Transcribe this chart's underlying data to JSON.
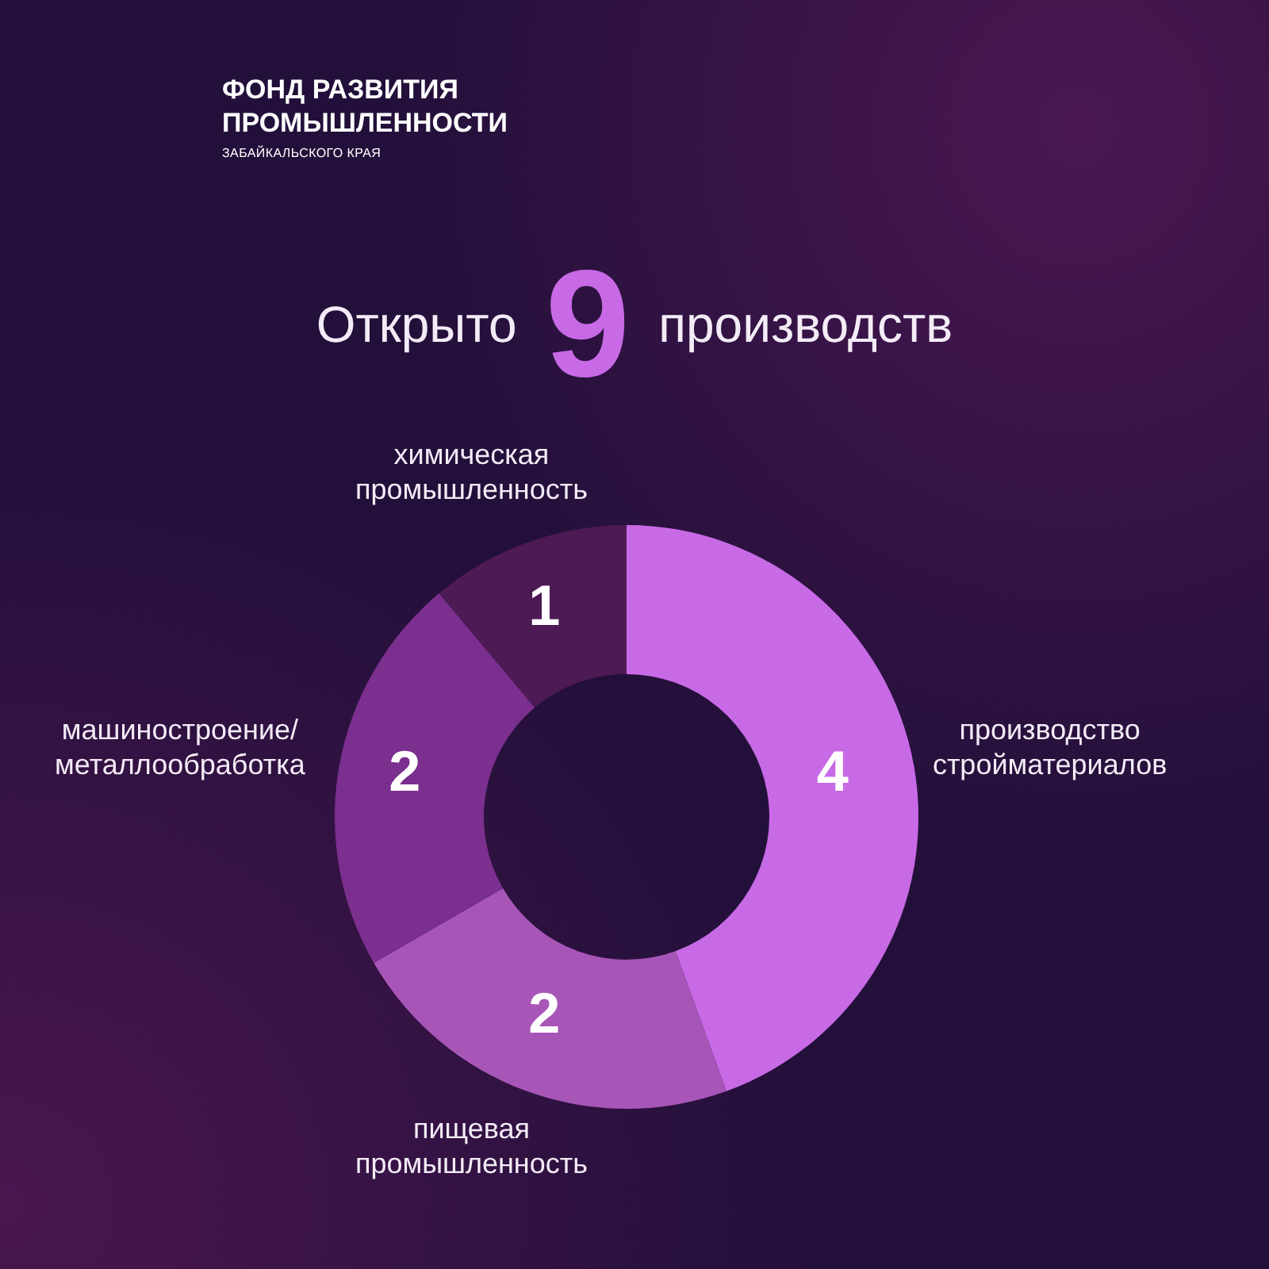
{
  "chart_data": {
    "type": "donut",
    "title": "Открыто 9 производств",
    "categories": [
      "производство стройматериалов",
      "пищевая промышленность",
      "машиностроение/металлообработка",
      "химическая промышленность"
    ],
    "values": [
      4,
      2,
      2,
      1
    ],
    "colors": [
      "#c86ae6",
      "#a855b8",
      "#7b2f8e",
      "#4d1a55"
    ],
    "data_labels": true,
    "annotations": [
      "ФОНД РАЗВИТИЯ ПРОМЫШЛЕННОСТИ",
      "ЗАБАЙКАЛЬСКОГО КРАЯ"
    ]
  }
}
